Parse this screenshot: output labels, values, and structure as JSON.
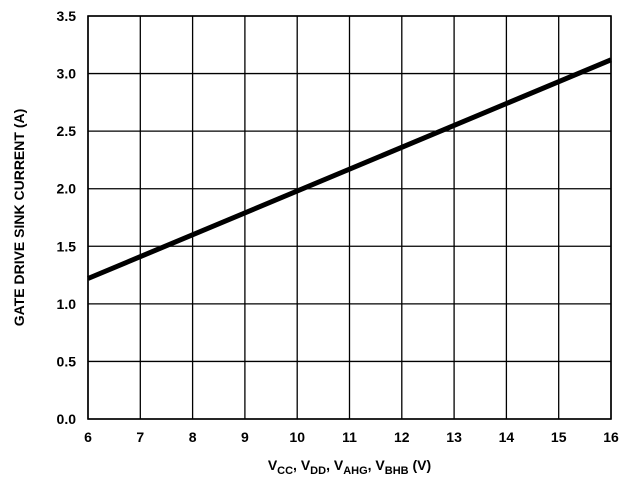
{
  "chart_data": {
    "type": "line",
    "title": "",
    "xlabel": {
      "parts": [
        {
          "main": "V",
          "sub": "CC",
          "sep": ", "
        },
        {
          "main": "V",
          "sub": "DD",
          "sep": ", "
        },
        {
          "main": "V",
          "sub": "AHG",
          "sep": ", "
        },
        {
          "main": "V",
          "sub": "BHB",
          "sep": " (V)"
        }
      ]
    },
    "ylabel": "GATE DRIVE SINK CURRENT (A)",
    "xlim": [
      6,
      16
    ],
    "ylim": [
      0,
      3.5
    ],
    "xticks": [
      "6",
      "7",
      "8",
      "9",
      "10",
      "11",
      "12",
      "13",
      "14",
      "15",
      "16"
    ],
    "yticks": [
      "0.0",
      "0.5",
      "1.0",
      "1.5",
      "2.0",
      "2.5",
      "3.0",
      "3.5"
    ],
    "grid": true,
    "series": [
      {
        "x": [
          6,
          16
        ],
        "y": [
          1.22,
          3.12
        ],
        "color": "#000000"
      }
    ]
  }
}
